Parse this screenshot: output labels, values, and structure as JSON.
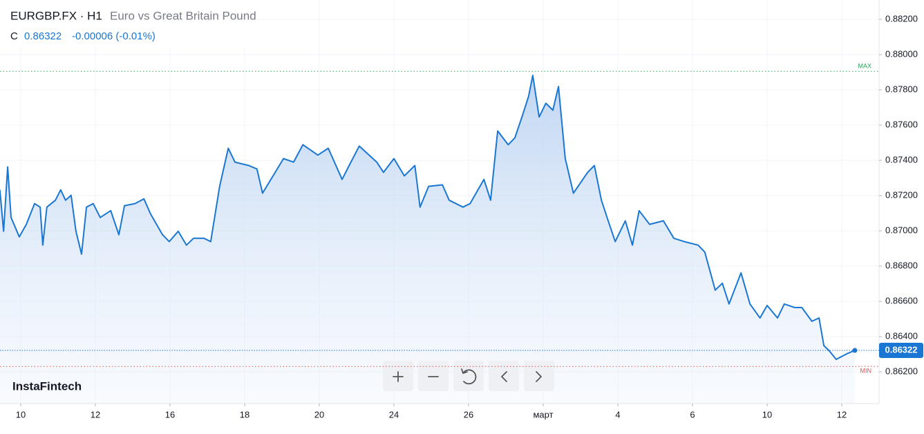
{
  "chart_data": {
    "type": "area",
    "symbol": "EURGBP.FX · H1",
    "description": "Euro vs Great Britain Pound",
    "price_prefix": "C",
    "last_price": 0.86322,
    "change": "-0.00006 (-0.01%)",
    "brand": "InstaFintech",
    "color": "#1976d2",
    "grid": true,
    "max": {
      "label": "MAX",
      "value": 0.87905,
      "color": "#26a65b"
    },
    "min": {
      "label": "MIN",
      "value": 0.86231,
      "color": "#e0504a"
    },
    "xlim": [
      -0.556,
      23.0
    ],
    "ylim": [
      0.8602,
      0.8831
    ],
    "xticks": [
      {
        "value": 0,
        "label": "10"
      },
      {
        "value": 2,
        "label": "12"
      },
      {
        "value": 4,
        "label": "16"
      },
      {
        "value": 6,
        "label": "18"
      },
      {
        "value": 8,
        "label": "20"
      },
      {
        "value": 10,
        "label": "24"
      },
      {
        "value": 12,
        "label": "26"
      },
      {
        "value": 14,
        "label": "март"
      },
      {
        "value": 16,
        "label": "4"
      },
      {
        "value": 18,
        "label": "6"
      },
      {
        "value": 20,
        "label": "10"
      },
      {
        "value": 22,
        "label": "12"
      }
    ],
    "yticks": [
      {
        "value": 0.862,
        "label": "0.86200"
      },
      {
        "value": 0.864,
        "label": "0.86400"
      },
      {
        "value": 0.866,
        "label": "0.86600"
      },
      {
        "value": 0.868,
        "label": "0.86800"
      },
      {
        "value": 0.87,
        "label": "0.87000"
      },
      {
        "value": 0.872,
        "label": "0.87200"
      },
      {
        "value": 0.874,
        "label": "0.87400"
      },
      {
        "value": 0.876,
        "label": "0.87600"
      },
      {
        "value": 0.878,
        "label": "0.87800"
      },
      {
        "value": 0.88,
        "label": "0.88000"
      },
      {
        "value": 0.882,
        "label": "0.88200"
      }
    ],
    "x": [
      -0.56,
      -0.46,
      -0.35,
      -0.26,
      -0.04,
      0.15,
      0.37,
      0.52,
      0.59,
      0.7,
      0.93,
      1.07,
      1.2,
      1.35,
      1.48,
      1.63,
      1.76,
      1.94,
      2.13,
      2.41,
      2.63,
      2.78,
      3.06,
      3.3,
      3.48,
      3.8,
      3.98,
      4.22,
      4.44,
      4.63,
      4.91,
      5.09,
      5.33,
      5.56,
      5.74,
      6.11,
      6.33,
      6.48,
      6.76,
      7.04,
      7.31,
      7.56,
      7.96,
      8.24,
      8.61,
      8.8,
      9.07,
      9.54,
      9.72,
      10.0,
      10.28,
      10.56,
      10.7,
      10.93,
      11.3,
      11.48,
      11.85,
      12.04,
      12.41,
      12.59,
      12.78,
      13.06,
      13.24,
      13.43,
      13.61,
      13.72,
      13.89,
      14.07,
      14.26,
      14.41,
      14.59,
      14.81,
      15.19,
      15.37,
      15.56,
      15.74,
      15.93,
      16.2,
      16.39,
      16.57,
      16.85,
      17.22,
      17.5,
      17.78,
      18.15,
      18.33,
      18.61,
      18.8,
      18.98,
      19.3,
      19.54,
      19.81,
      20.0,
      20.28,
      20.46,
      20.74,
      20.93,
      21.2,
      21.39,
      21.52,
      21.67,
      21.85,
      22.13,
      22.35
    ],
    "values": [
      0.87233,
      0.86998,
      0.87363,
      0.87076,
      0.86966,
      0.87037,
      0.87155,
      0.87135,
      0.86919,
      0.87135,
      0.87174,
      0.87233,
      0.87174,
      0.87202,
      0.86998,
      0.86868,
      0.87135,
      0.87155,
      0.87076,
      0.87115,
      0.86978,
      0.87143,
      0.87155,
      0.87182,
      0.87096,
      0.86978,
      0.86939,
      0.86998,
      0.86919,
      0.86958,
      0.86958,
      0.86939,
      0.87253,
      0.87469,
      0.8739,
      0.87371,
      0.87351,
      0.87214,
      0.87312,
      0.8741,
      0.8739,
      0.87489,
      0.8743,
      0.87469,
      0.87292,
      0.87371,
      0.87481,
      0.8739,
      0.87332,
      0.8741,
      0.87312,
      0.87371,
      0.87135,
      0.87253,
      0.87261,
      0.87174,
      0.87135,
      0.87155,
      0.87292,
      0.87174,
      0.87567,
      0.87489,
      0.87528,
      0.87646,
      0.87764,
      0.87882,
      0.87646,
      0.87724,
      0.87685,
      0.87819,
      0.8741,
      0.87214,
      0.87332,
      0.87371,
      0.87174,
      0.87057,
      0.86939,
      0.87057,
      0.86919,
      0.87115,
      0.87037,
      0.87057,
      0.86958,
      0.86939,
      0.86919,
      0.8688,
      0.86664,
      0.86703,
      0.86585,
      0.86762,
      0.86585,
      0.86506,
      0.86577,
      0.86506,
      0.86585,
      0.86565,
      0.86565,
      0.86487,
      0.86506,
      0.86349,
      0.86318,
      0.86271,
      0.86302,
      0.86322
    ]
  }
}
